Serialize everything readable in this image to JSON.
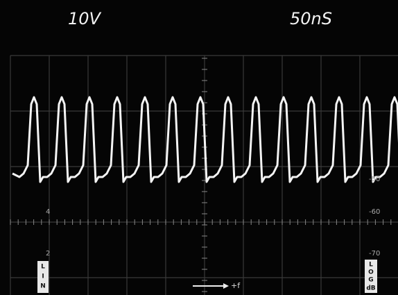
{
  "header": {
    "volts": "10V",
    "time": "50nS"
  },
  "scale_right": [
    "-50",
    "-60",
    "-70"
  ],
  "scale_left": [
    "4",
    "2"
  ],
  "lin_label": [
    "L",
    "I",
    "N"
  ],
  "log_label": [
    "L",
    "O",
    "G",
    "dB"
  ],
  "frequency_label": "+f"
}
